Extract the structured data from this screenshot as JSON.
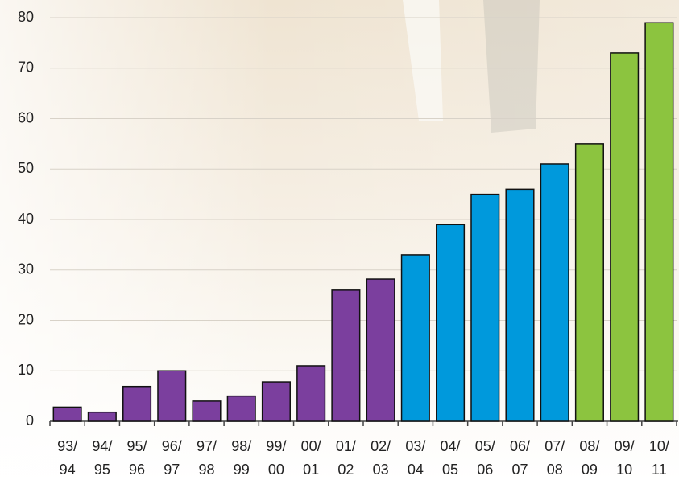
{
  "chart_data": {
    "type": "bar",
    "categories": [
      [
        "93/",
        "94"
      ],
      [
        "94/",
        "95"
      ],
      [
        "95/",
        "96"
      ],
      [
        "96/",
        "97"
      ],
      [
        "97/",
        "98"
      ],
      [
        "98/",
        "99"
      ],
      [
        "99/",
        "00"
      ],
      [
        "00/",
        "01"
      ],
      [
        "01/",
        "02"
      ],
      [
        "02/",
        "03"
      ],
      [
        "03/",
        "04"
      ],
      [
        "04/",
        "05"
      ],
      [
        "05/",
        "06"
      ],
      [
        "06/",
        "07"
      ],
      [
        "07/",
        "08"
      ],
      [
        "08/",
        "09"
      ],
      [
        "09/",
        "10"
      ],
      [
        "10/",
        "11"
      ]
    ],
    "values": [
      2.8,
      1.8,
      6.9,
      10,
      4,
      5,
      7.8,
      11,
      26,
      28.2,
      33,
      39,
      45,
      46,
      51,
      55,
      73,
      79
    ],
    "colors": [
      "#7b3f9e",
      "#7b3f9e",
      "#7b3f9e",
      "#7b3f9e",
      "#7b3f9e",
      "#7b3f9e",
      "#7b3f9e",
      "#7b3f9e",
      "#7b3f9e",
      "#7b3f9e",
      "#0099dc",
      "#0099dc",
      "#0099dc",
      "#0099dc",
      "#0099dc",
      "#8cc43f",
      "#8cc43f",
      "#8cc43f"
    ],
    "ylim": [
      0,
      80
    ],
    "yticks": [
      0,
      10,
      20,
      30,
      40,
      50,
      60,
      70,
      80
    ],
    "grid": true
  }
}
